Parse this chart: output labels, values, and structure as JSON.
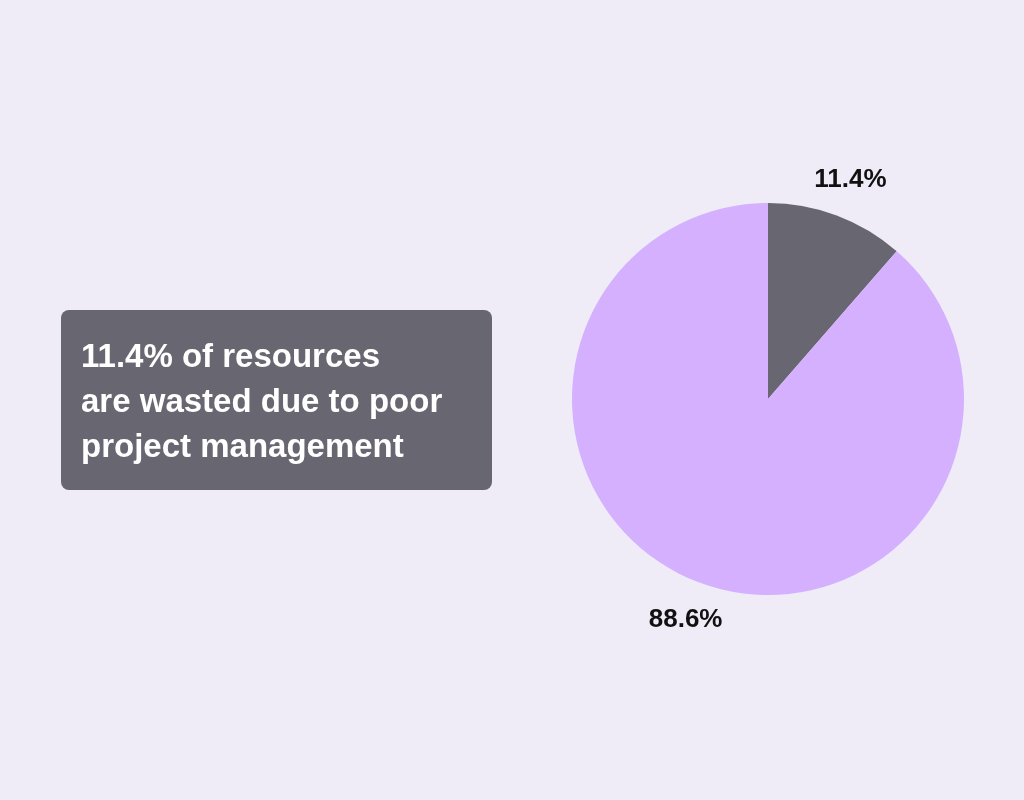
{
  "chart_data": {
    "type": "pie",
    "title": "11.4% of resources\nare wasted due to poor\nproject management",
    "categories": [
      null,
      null
    ],
    "values": [
      11.4,
      88.6
    ],
    "colors": [
      "#686670",
      "#d4b0fe"
    ],
    "value_labels": [
      "11.4%",
      "88.6%"
    ]
  }
}
